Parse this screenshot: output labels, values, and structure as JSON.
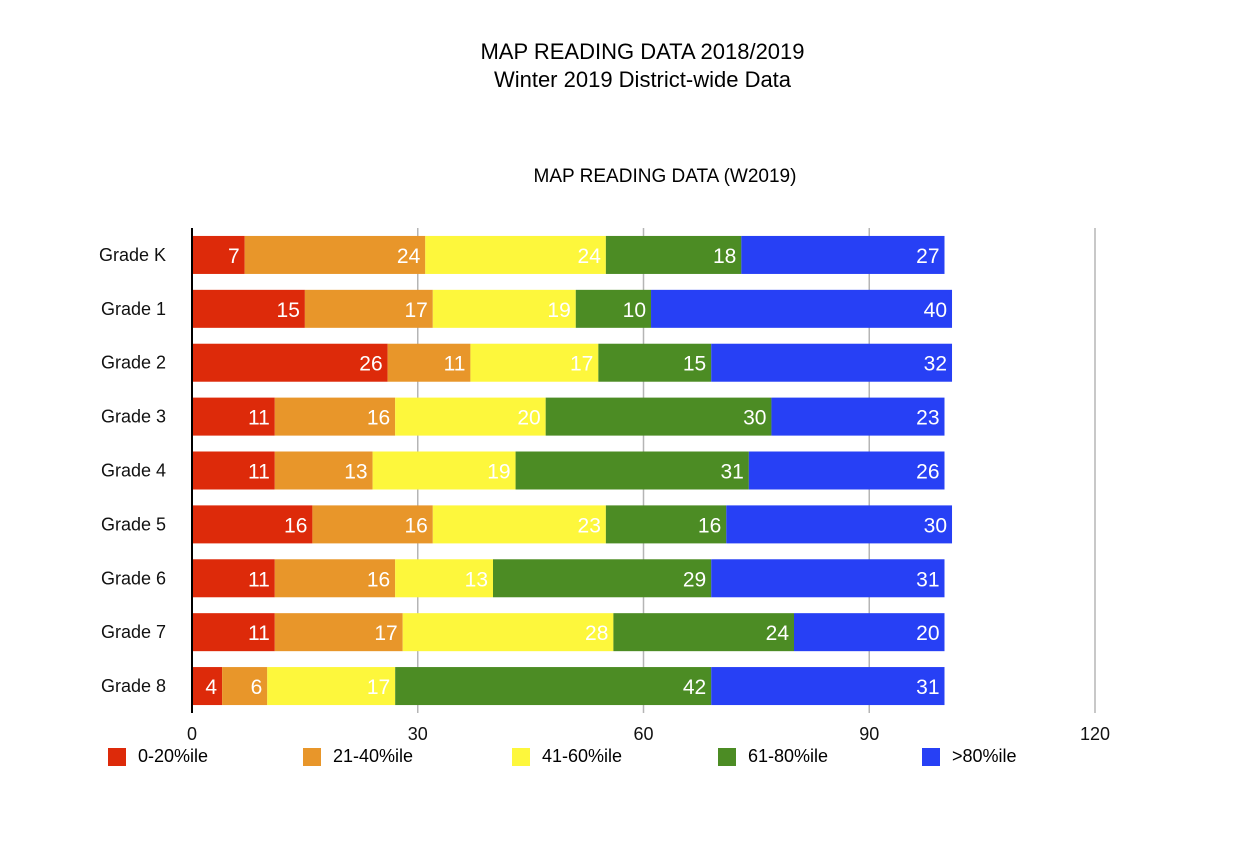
{
  "header": {
    "title_line1": "MAP READING DATA 2018/2019",
    "title_line2": "Winter 2019 District-wide Data"
  },
  "chart_data": {
    "type": "bar",
    "orientation": "horizontal",
    "stacked": true,
    "title": "MAP READING DATA (W2019)",
    "xlabel": "",
    "ylabel": "",
    "categories": [
      "Grade K",
      "Grade 1",
      "Grade 2",
      "Grade 3",
      "Grade 4",
      "Grade 5",
      "Grade 6",
      "Grade 7",
      "Grade 8"
    ],
    "xlim": [
      0,
      120
    ],
    "xticks": [
      0,
      30,
      60,
      90,
      120
    ],
    "grid": true,
    "legend_position": "bottom",
    "series": [
      {
        "name": "0-20%ile",
        "color": "#dd2a0a",
        "values": [
          7,
          15,
          26,
          11,
          11,
          16,
          11,
          11,
          4
        ]
      },
      {
        "name": "21-40%ile",
        "color": "#e8962a",
        "values": [
          24,
          17,
          11,
          16,
          13,
          16,
          16,
          17,
          6
        ]
      },
      {
        "name": "41-60%ile",
        "color": "#fdf73c",
        "values": [
          24,
          19,
          17,
          20,
          19,
          23,
          13,
          28,
          17
        ]
      },
      {
        "name": "61-80%ile",
        "color": "#4c8c24",
        "values": [
          18,
          10,
          15,
          30,
          31,
          16,
          29,
          24,
          42
        ]
      },
      {
        "name": ">80%ile",
        "color": "#2740f5",
        "values": [
          27,
          40,
          32,
          23,
          26,
          30,
          31,
          20,
          31
        ]
      }
    ]
  }
}
